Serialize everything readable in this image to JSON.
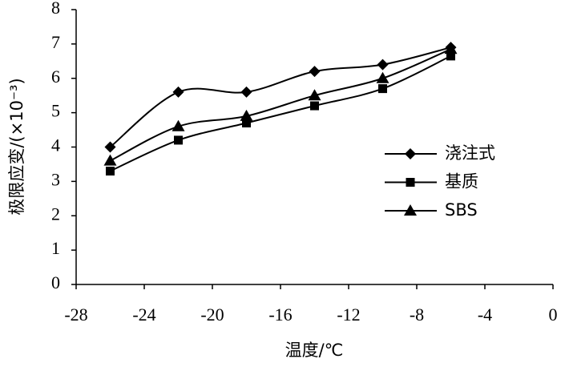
{
  "chart_data": {
    "type": "line",
    "smooth": true,
    "x_label": "温度/℃",
    "y_label": "极限应变/(×10⁻³)",
    "x": [
      -26,
      -22,
      -18,
      -14,
      -10,
      -6
    ],
    "series": [
      {
        "name": "浇注式",
        "color": "#000000",
        "marker": "diamond",
        "values": [
          4.0,
          5.6,
          5.6,
          6.2,
          6.4,
          6.9
        ]
      },
      {
        "name": "基质",
        "color": "#000000",
        "marker": "square",
        "values": [
          3.3,
          4.2,
          4.7,
          5.2,
          5.7,
          6.65
        ]
      },
      {
        "name": "SBS",
        "color": "#000000",
        "marker": "triangle",
        "values": [
          3.6,
          4.6,
          4.9,
          5.5,
          6.0,
          6.85
        ]
      }
    ],
    "xlim": [
      -28,
      0
    ],
    "xticks": [
      -28,
      -24,
      -20,
      -16,
      -12,
      -8,
      -4,
      0
    ],
    "ylim": [
      0,
      8
    ],
    "yticks": [
      0,
      1,
      2,
      3,
      4,
      5,
      6,
      7,
      8
    ],
    "grid": false,
    "legend": "right"
  }
}
